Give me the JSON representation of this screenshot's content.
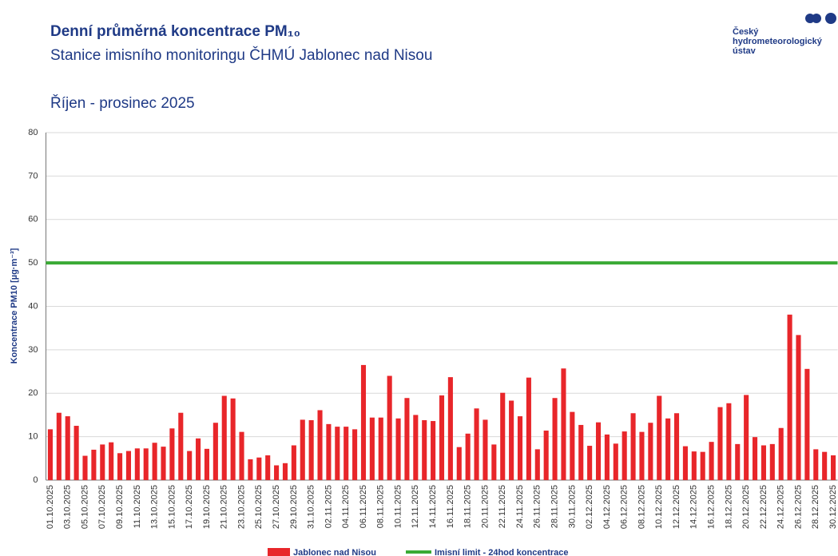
{
  "chart_data": {
    "type": "bar",
    "title": "Denní průměrná koncentrace PM₁₀",
    "subtitle": "Stanice imisního monitoringu ČHMÚ Jablonec nad Nisou",
    "period": "Říjen - prosinec 2025",
    "logo": [
      "Český",
      "hydrometeorologický",
      "ústav"
    ],
    "y_label": "Koncentrace PM10 [µg·m⁻³]",
    "categories": [
      "01.10.2025",
      null,
      "03.10.2025",
      null,
      "05.10.2025",
      null,
      "07.10.2025",
      null,
      "09.10.2025",
      null,
      "11.10.2025",
      null,
      "13.10.2025",
      null,
      "15.10.2025",
      null,
      "17.10.2025",
      null,
      "19.10.2025",
      null,
      "21.10.2025",
      null,
      "23.10.2025",
      null,
      "25.10.2025",
      null,
      "27.10.2025",
      null,
      "29.10.2025",
      null,
      "31.10.2025",
      null,
      "02.11.2025",
      null,
      "04.11.2025",
      null,
      "06.11.2025",
      null,
      "08.11.2025",
      null,
      "10.11.2025",
      null,
      "12.11.2025",
      null,
      "14.11.2025",
      null,
      "16.11.2025",
      null,
      "18.11.2025",
      null,
      "20.11.2025",
      null,
      "22.11.2025",
      null,
      "24.11.2025",
      null,
      "26.11.2025",
      null,
      "28.11.2025",
      null,
      "30.11.2025",
      null,
      "02.12.2025",
      null,
      "04.12.2025",
      null,
      "06.12.2025",
      null,
      "08.12.2025",
      null,
      "10.12.2025",
      null,
      "12.12.2025",
      null,
      "14.12.2025",
      null,
      "16.12.2025",
      null,
      "18.12.2025",
      null,
      "20.12.2025",
      null,
      "22.12.2025",
      null,
      "24.12.2025",
      null,
      "26.12.2025",
      null,
      "28.12.2025",
      null,
      "30.12.2025"
    ],
    "series": [
      {
        "name": "Jablonec nad Nisou",
        "color": "#e8262a",
        "values": [
          11.7,
          15.5,
          14.7,
          12.5,
          5.6,
          7.0,
          8.2,
          8.7,
          6.2,
          6.7,
          7.3,
          7.3,
          8.6,
          7.7,
          11.9,
          15.5,
          6.7,
          9.6,
          7.2,
          13.2,
          19.4,
          18.8,
          11.1,
          4.8,
          5.2,
          5.7,
          3.4,
          3.9,
          8.0,
          13.9,
          13.8,
          16.1,
          12.9,
          12.3,
          12.3,
          11.7,
          26.5,
          14.4,
          14.4,
          24.0,
          14.2,
          18.9,
          15.0,
          13.8,
          13.6,
          19.5,
          23.7,
          7.6,
          10.7,
          16.5,
          13.9,
          8.2,
          20.1,
          18.3,
          14.7,
          23.6,
          7.1,
          11.4,
          18.9,
          25.7,
          15.7,
          12.7,
          7.9,
          13.3,
          10.5,
          8.4,
          11.2,
          15.4,
          11.1,
          13.2,
          19.4,
          14.2,
          15.4,
          7.8,
          6.6,
          6.5,
          8.8,
          16.8,
          17.7,
          8.3,
          19.6,
          9.9,
          8.0,
          8.3,
          12.0,
          38.1,
          33.4,
          25.6,
          7.1,
          6.5,
          5.7
        ]
      }
    ],
    "limit": {
      "name": "Imisní limit - 24hod koncentrace",
      "color": "#3aaa35",
      "value": 50
    },
    "ylim": [
      0,
      80
    ],
    "yticks": [
      0,
      10,
      20,
      30,
      40,
      50,
      60,
      70,
      80
    ],
    "grid": true
  }
}
